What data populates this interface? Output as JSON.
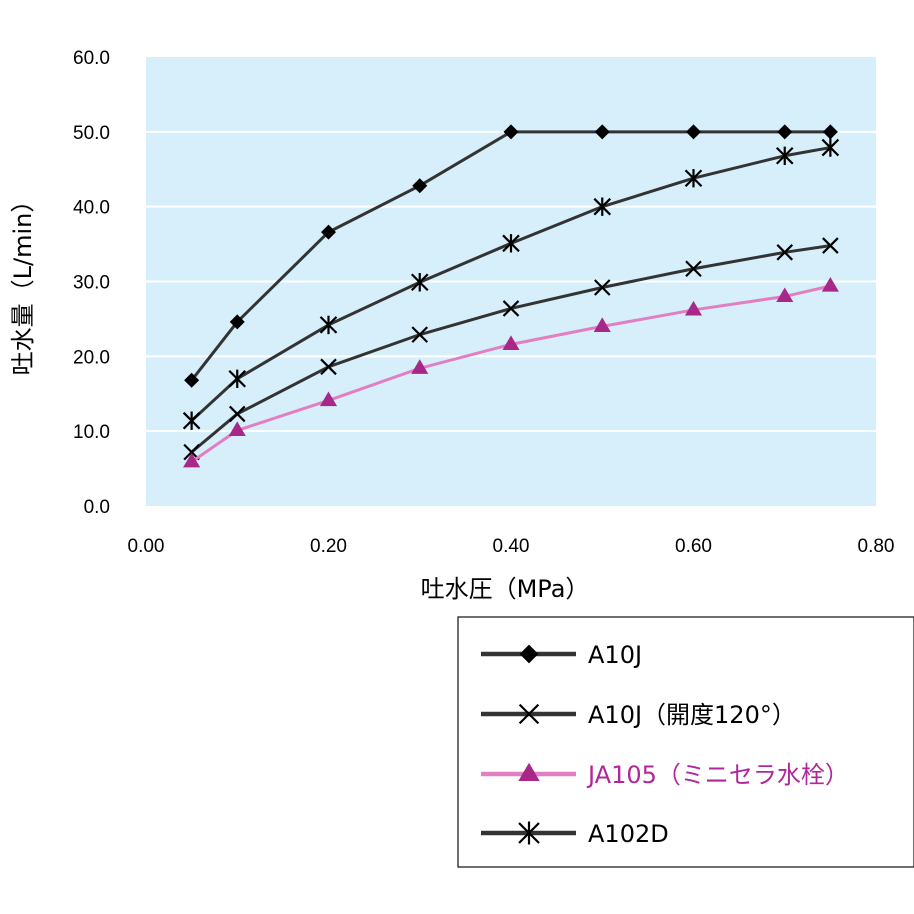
{
  "chart_data": {
    "type": "line",
    "title": "",
    "xlabel": "吐水圧（MPa）",
    "ylabel": "吐水量（L/min）",
    "xlim": [
      0,
      0.8
    ],
    "ylim": [
      0,
      60
    ],
    "x_ticks": [
      "0.00",
      "0.20",
      "0.40",
      "0.60",
      "0.80"
    ],
    "y_ticks": [
      "0.0",
      "10.0",
      "20.0",
      "30.0",
      "40.0",
      "50.0",
      "60.0"
    ],
    "grid": "horizontal",
    "legend_position": "bottom-right",
    "series": [
      {
        "name": "A10J",
        "marker": "diamond",
        "color": "#333333",
        "marker_color": "#000000",
        "x": [
          0.05,
          0.1,
          0.2,
          0.3,
          0.4,
          0.5,
          0.6,
          0.7,
          0.75
        ],
        "y": [
          16.8,
          24.6,
          36.6,
          42.8,
          50.0,
          50.0,
          50.0,
          50.0,
          50.0
        ]
      },
      {
        "name": "A10J（開度120°）",
        "marker": "x",
        "color": "#333333",
        "marker_color": "#000000",
        "x": [
          0.05,
          0.1,
          0.2,
          0.3,
          0.4,
          0.5,
          0.6,
          0.7,
          0.75
        ],
        "y": [
          7.2,
          12.3,
          18.6,
          22.9,
          26.4,
          29.2,
          31.7,
          33.9,
          34.8
        ]
      },
      {
        "name": "JA105（ミニセラ水栓）",
        "marker": "triangle",
        "color": "#e27fc2",
        "marker_color": "#a8288a",
        "x": [
          0.05,
          0.1,
          0.2,
          0.3,
          0.4,
          0.5,
          0.6,
          0.7,
          0.75
        ],
        "y": [
          5.9,
          10.1,
          14.1,
          18.4,
          21.6,
          24.0,
          26.2,
          28.0,
          29.4
        ]
      },
      {
        "name": "A102D",
        "marker": "asterisk",
        "color": "#333333",
        "marker_color": "#000000",
        "x": [
          0.05,
          0.1,
          0.2,
          0.3,
          0.4,
          0.5,
          0.6,
          0.7,
          0.75
        ],
        "y": [
          11.4,
          17.0,
          24.2,
          29.9,
          35.1,
          40.0,
          43.8,
          46.8,
          47.9
        ]
      }
    ]
  },
  "legend": {
    "items": [
      {
        "label": "A10J",
        "color": "#000000"
      },
      {
        "label": "A10J（開度120°）",
        "color": "#000000"
      },
      {
        "label": "JA105（ミニセラ水栓）",
        "color": "#b0279a"
      },
      {
        "label": "A102D",
        "color": "#000000"
      }
    ]
  },
  "colors": {
    "plot_background": "#d6effa",
    "gridline": "#ffffff"
  }
}
